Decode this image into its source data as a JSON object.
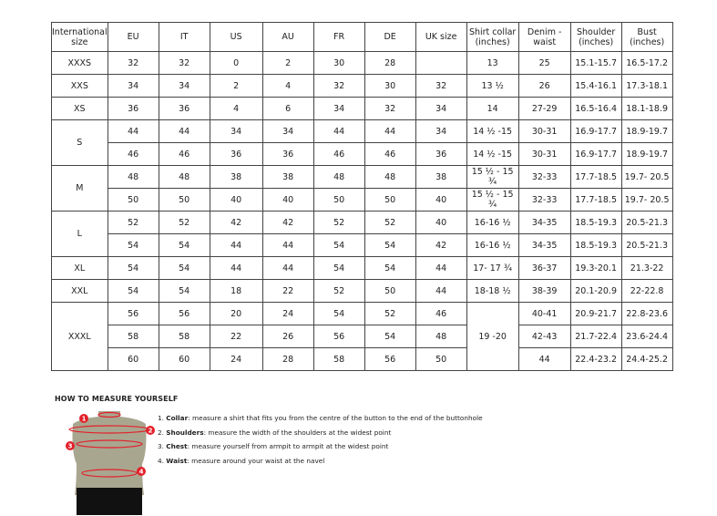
{
  "table": {
    "headers": [
      "International size",
      "EU",
      "IT",
      "US",
      "AU",
      "FR",
      "DE",
      "UK size",
      "Shirt collar (inches)",
      "Denim - waist",
      "Shoulder (inches)",
      "Bust (inches)"
    ],
    "groups": [
      {
        "size": "XXXS",
        "rows": [
          [
            "32",
            "32",
            "0",
            "2",
            "30",
            "28",
            "",
            "13",
            "25",
            "15.1-15.7",
            "16.5-17.2"
          ]
        ]
      },
      {
        "size": "XXS",
        "rows": [
          [
            "34",
            "34",
            "2",
            "4",
            "32",
            "30",
            "32",
            "13 ½",
            "26",
            "15.4-16.1",
            "17.3-18.1"
          ]
        ]
      },
      {
        "size": "XS",
        "rows": [
          [
            "36",
            "36",
            "4",
            "6",
            "34",
            "32",
            "34",
            "14",
            "27-29",
            "16.5-16.4",
            "18.1-18.9"
          ]
        ]
      },
      {
        "size": "S",
        "rows": [
          [
            "44",
            "44",
            "34",
            "34",
            "44",
            "44",
            "34",
            "14 ½ -15",
            "30-31",
            "16.9-17.7",
            "18.9-19.7"
          ],
          [
            "46",
            "46",
            "36",
            "36",
            "46",
            "46",
            "36",
            "14 ½ -15",
            "30-31",
            "16.9-17.7",
            "18.9-19.7"
          ]
        ]
      },
      {
        "size": "M",
        "rows": [
          [
            "48",
            "48",
            "38",
            "38",
            "48",
            "48",
            "38",
            "15 ½ - 15 ¾",
            "32-33",
            "17.7-18.5",
            "19.7- 20.5"
          ],
          [
            "50",
            "50",
            "40",
            "40",
            "50",
            "50",
            "40",
            "15 ½ - 15 ¾",
            "32-33",
            "17.7-18.5",
            "19.7- 20.5"
          ]
        ]
      },
      {
        "size": "L",
        "rows": [
          [
            "52",
            "52",
            "42",
            "42",
            "52",
            "52",
            "40",
            "16-16 ½",
            "34-35",
            "18.5-19.3",
            "20.5-21.3"
          ],
          [
            "54",
            "54",
            "44",
            "44",
            "54",
            "54",
            "42",
            "16-16 ½",
            "34-35",
            "18.5-19.3",
            "20.5-21.3"
          ]
        ]
      },
      {
        "size": "XL",
        "rows": [
          [
            "54",
            "54",
            "44",
            "44",
            "54",
            "54",
            "44",
            "17- 17 ¾",
            "36-37",
            "19.3-20.1",
            "21.3-22"
          ]
        ]
      },
      {
        "size": "XXL",
        "rows": [
          [
            "54",
            "54",
            "18",
            "22",
            "52",
            "50",
            "44",
            "18-18 ½",
            "38-39",
            "20.1-20.9",
            "22-22.8"
          ]
        ]
      },
      {
        "size": "XXXL",
        "collar": "19 -20",
        "rows": [
          [
            "56",
            "56",
            "20",
            "24",
            "54",
            "52",
            "46",
            "40-41",
            "20.9-21.7",
            "22.8-23.6"
          ],
          [
            "58",
            "58",
            "22",
            "26",
            "56",
            "54",
            "48",
            "42-43",
            "21.7-22.4",
            "23.6-24.4"
          ],
          [
            "60",
            "60",
            "24",
            "28",
            "58",
            "56",
            "50",
            "44",
            "22.4-23.2",
            "24.4-25.2"
          ]
        ]
      }
    ]
  },
  "howto": {
    "title": "HOW TO MEASURE YOURSELF",
    "markers": [
      "1",
      "2",
      "3",
      "4"
    ],
    "steps": [
      {
        "num": "1.",
        "term": "Collar",
        "text": ": measure a shirt that fits you from the centre of the button to the end of the buttonhole"
      },
      {
        "num": "2.",
        "term": "Shoulders",
        "text": ": measure the width of the shoulders at the widest point"
      },
      {
        "num": "3.",
        "term": "Chest",
        "text": ": measure yourself from armpit to armpit at the widest point"
      },
      {
        "num": "4.",
        "term": "Waist",
        "text": ": measure around your waist at the navel"
      }
    ]
  },
  "colors": {
    "marker": "#e3202a",
    "torso": "#a9a690",
    "shorts": "#111111"
  }
}
